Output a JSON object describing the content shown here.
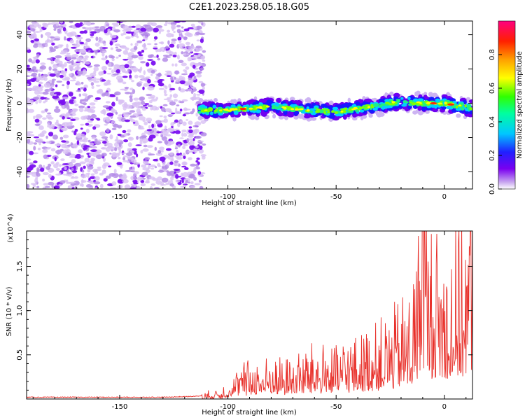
{
  "title": "C2E1.2023.258.05.18.G05",
  "chart_data": [
    {
      "type": "heatmap",
      "xlabel": "Height of straight line (km)",
      "ylabel": "Frequency (Hz)",
      "xlim": [
        -193,
        13
      ],
      "ylim": [
        -50,
        48
      ],
      "xticks": [
        -150,
        -100,
        -50,
        0
      ],
      "yticks": [
        -40,
        -20,
        0,
        20,
        40
      ],
      "colorbar": {
        "label": "Normalized spectral amplitude",
        "range": [
          0,
          1
        ],
        "ticks": [
          "0.0",
          "0.2",
          "0.4",
          "0.6",
          "0.8"
        ],
        "colors": [
          "#ffffff",
          "#c9a8f0",
          "#7a00f0",
          "#2020ff",
          "#00c8ff",
          "#00ffa0",
          "#30ff00",
          "#ffff00",
          "#ffa000",
          "#ff2000",
          "#ff0080"
        ]
      },
      "noise_region_x": [
        -193,
        -111
      ],
      "signal_ridge": {
        "x": [
          -113,
          -100,
          -90,
          -80,
          -70,
          -60,
          -50,
          -45,
          -40,
          -30,
          -20,
          -10,
          0,
          13
        ],
        "y": [
          -4,
          -4,
          -3,
          -2,
          -3,
          -4,
          -5,
          -4,
          -3,
          -1,
          1,
          0,
          0,
          -3
        ]
      }
    },
    {
      "type": "line",
      "xlabel": "Height of straight line (km)",
      "ylabel": "SNR (10 * v/v)",
      "yunit": "(x10^4)",
      "xlim": [
        -193,
        13
      ],
      "ylim": [
        0,
        1.9
      ],
      "xticks": [
        -150,
        -100,
        -50,
        0
      ],
      "yticks": [
        "0.5",
        "1.0",
        "1.5"
      ],
      "color": "#e8302a",
      "series": [
        {
          "x": [
            -193,
            -170,
            -150,
            -130,
            -115,
            -105,
            -100,
            -95,
            -90,
            -85,
            -80,
            -75,
            -70,
            -65,
            -60,
            -55,
            -50,
            -45,
            -40,
            -35,
            -30,
            -25,
            -20,
            -15,
            -12,
            -10,
            -8,
            -5,
            0,
            5,
            10,
            12,
            13
          ],
          "y": [
            0.02,
            0.02,
            0.02,
            0.02,
            0.03,
            0.06,
            0.12,
            0.22,
            0.28,
            0.26,
            0.3,
            0.28,
            0.3,
            0.35,
            0.38,
            0.4,
            0.35,
            0.45,
            0.42,
            0.5,
            0.55,
            0.6,
            0.7,
            0.8,
            1.2,
            1.85,
            1.3,
            1.2,
            1.1,
            1.2,
            1.3,
            1.5,
            1.35
          ]
        }
      ]
    }
  ]
}
